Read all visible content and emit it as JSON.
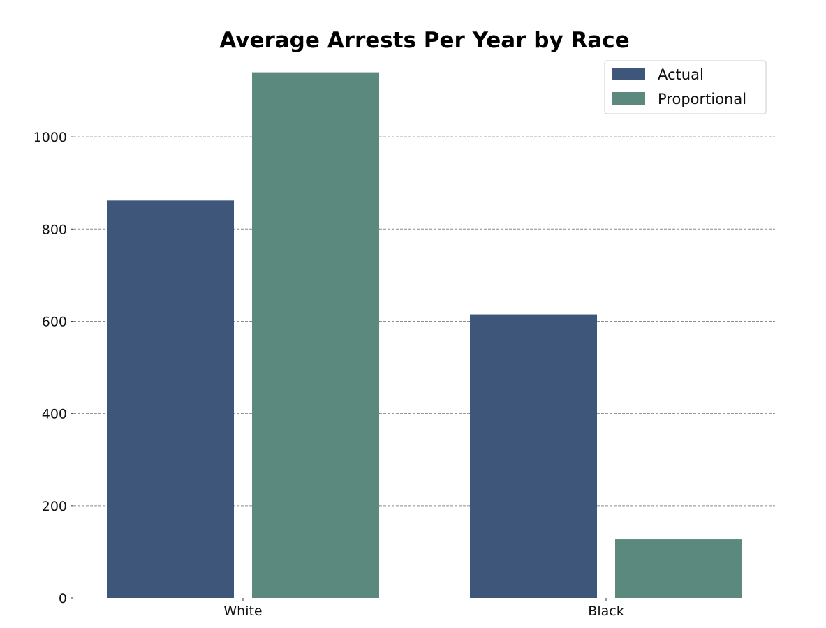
{
  "chart_data": {
    "type": "bar",
    "title": "Average Arrests Per Year by Race",
    "xlabel": "",
    "ylabel": "",
    "categories": [
      "White",
      "Black"
    ],
    "series": [
      {
        "name": "Actual",
        "values": [
          862,
          615
        ],
        "color": "#3e5679"
      },
      {
        "name": "Proportional",
        "values": [
          1140,
          127
        ],
        "color": "#5b897e"
      }
    ],
    "ylim": [
      0,
      1150
    ],
    "yticks": [
      0,
      200,
      400,
      600,
      800,
      1000
    ],
    "grid": "horizontal dashed",
    "legend_position": "top-right"
  }
}
